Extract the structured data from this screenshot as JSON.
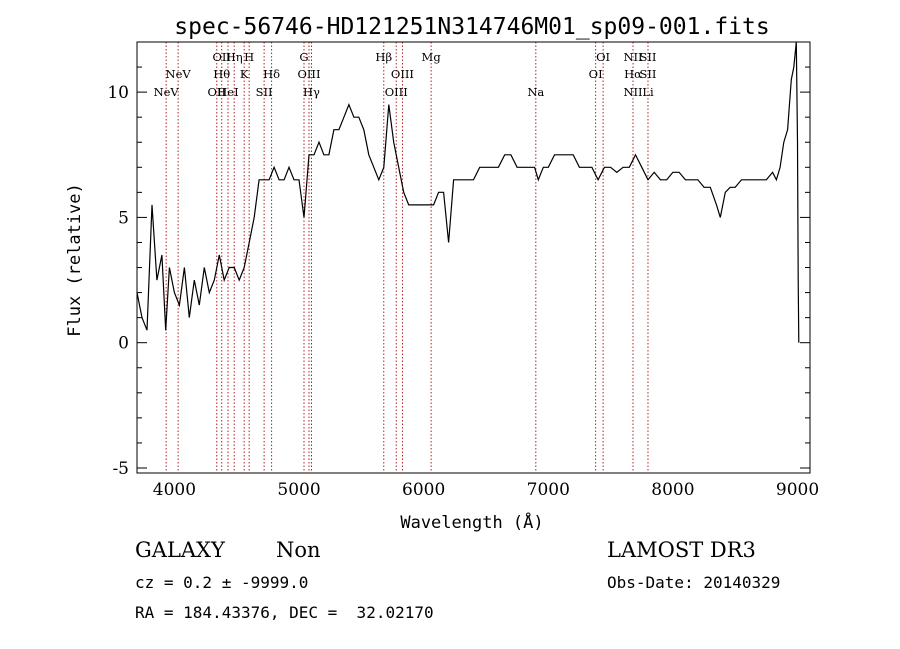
{
  "chart_data": {
    "type": "line",
    "title": "spec-56746-HD121251N314746M01_sp09-001.fits",
    "xlabel": "Wavelength (Å)",
    "ylabel": "Flux (relative)",
    "xlim": [
      3700,
      9100
    ],
    "ylim": [
      -5.2,
      12
    ],
    "x_ticks": [
      4000,
      5000,
      6000,
      7000,
      8000,
      9000
    ],
    "y_ticks": [
      -5,
      0,
      5,
      10
    ],
    "grid": false,
    "series": [
      {
        "x": [
          3700,
          3740,
          3780,
          3820,
          3860,
          3900,
          3930,
          3960,
          4000,
          4040,
          4080,
          4120,
          4160,
          4200,
          4240,
          4280,
          4320,
          4360,
          4400,
          4440,
          4480,
          4520,
          4560,
          4600,
          4640,
          4680,
          4720,
          4760,
          4800,
          4840,
          4880,
          4920,
          4960,
          5000,
          5040,
          5080,
          5120,
          5160,
          5200,
          5240,
          5280,
          5320,
          5360,
          5400,
          5440,
          5480,
          5520,
          5560,
          5600,
          5640,
          5680,
          5720,
          5760,
          5800,
          5840,
          5880,
          5920,
          5960,
          6000,
          6040,
          6080,
          6120,
          6160,
          6200,
          6240,
          6280,
          6320,
          6360,
          6400,
          6450,
          6500,
          6550,
          6600,
          6650,
          6700,
          6750,
          6800,
          6850,
          6890,
          6920,
          6960,
          7000,
          7050,
          7100,
          7150,
          7200,
          7250,
          7300,
          7350,
          7400,
          7450,
          7500,
          7550,
          7600,
          7650,
          7700,
          7750,
          7800,
          7850,
          7900,
          7950,
          8000,
          8050,
          8100,
          8150,
          8200,
          8250,
          8300,
          8350,
          8380,
          8420,
          8460,
          8500,
          8550,
          8600,
          8650,
          8700,
          8750,
          8800,
          8830,
          8860,
          8890,
          8920,
          8950,
          8970,
          8990,
          9000,
          9005,
          9010
        ],
        "y": [
          2.0,
          1.0,
          0.5,
          5.5,
          2.5,
          3.5,
          0.5,
          3.0,
          2.0,
          1.5,
          3.0,
          1.0,
          2.5,
          1.5,
          3.0,
          2.0,
          2.5,
          3.5,
          2.5,
          3.0,
          3.0,
          2.5,
          3.0,
          4.0,
          5.0,
          6.5,
          6.5,
          6.5,
          7.0,
          6.5,
          6.5,
          7.0,
          6.5,
          6.5,
          5.0,
          7.5,
          7.5,
          8.0,
          7.5,
          7.5,
          8.5,
          8.5,
          9.0,
          9.5,
          9.0,
          9.0,
          8.5,
          7.5,
          7.0,
          6.5,
          7.0,
          9.5,
          8.0,
          7.0,
          6.0,
          5.5,
          5.5,
          5.5,
          5.5,
          5.5,
          5.5,
          6.0,
          6.0,
          4.0,
          6.5,
          6.5,
          6.5,
          6.5,
          6.5,
          7.0,
          7.0,
          7.0,
          7.0,
          7.5,
          7.5,
          7.0,
          7.0,
          7.0,
          7.0,
          6.5,
          7.0,
          7.0,
          7.5,
          7.5,
          7.5,
          7.5,
          7.0,
          7.0,
          7.0,
          6.5,
          7.0,
          7.0,
          6.8,
          7.0,
          7.0,
          7.5,
          7.0,
          6.5,
          6.8,
          6.5,
          6.5,
          6.8,
          6.8,
          6.5,
          6.5,
          6.5,
          6.2,
          6.2,
          5.5,
          5.0,
          6.0,
          6.2,
          6.2,
          6.5,
          6.5,
          6.5,
          6.5,
          6.5,
          6.8,
          6.5,
          7.0,
          8.0,
          8.5,
          10.5,
          11.0,
          12.0,
          8.0,
          2.5,
          0.0
        ]
      }
    ],
    "line_markers": [
      {
        "wavelength": 3934,
        "labels": [
          "NeV"
        ],
        "row": 3
      },
      {
        "wavelength": 4030,
        "labels": [
          "NeV"
        ],
        "row": 2
      },
      {
        "wavelength": 4340,
        "labels": [
          "OII"
        ],
        "row": 3
      },
      {
        "wavelength": 4380,
        "labels": [
          "OII",
          "Hθ"
        ],
        "row": 1
      },
      {
        "wavelength": 4430,
        "labels": [
          "HeI"
        ],
        "row": 3
      },
      {
        "wavelength": 4480,
        "labels": [
          "Hη"
        ],
        "row": 1
      },
      {
        "wavelength": 4560,
        "labels": [
          "K"
        ],
        "row": 2
      },
      {
        "wavelength": 4600,
        "labels": [
          "H"
        ],
        "row": 1
      },
      {
        "wavelength": 4720,
        "labels": [
          "SII"
        ],
        "row": 3
      },
      {
        "wavelength": 4780,
        "labels": [
          "Hδ"
        ],
        "row": 2
      },
      {
        "wavelength": 5040,
        "labels": [
          "G"
        ],
        "row": 1
      },
      {
        "wavelength": 5080,
        "labels": [
          "OIII"
        ],
        "row": 2
      },
      {
        "wavelength": 5100,
        "labels": [
          "Hγ"
        ],
        "row": 3
      },
      {
        "wavelength": 5680,
        "labels": [
          "Hβ"
        ],
        "row": 1
      },
      {
        "wavelength": 5780,
        "labels": [
          "OIII"
        ],
        "row": 3
      },
      {
        "wavelength": 5830,
        "labels": [
          "OIII"
        ],
        "row": 2
      },
      {
        "wavelength": 6060,
        "labels": [
          "Mg"
        ],
        "row": 1
      },
      {
        "wavelength": 6900,
        "labels": [
          "Na"
        ],
        "row": 3
      },
      {
        "wavelength": 7380,
        "labels": [
          "OI"
        ],
        "row": 2
      },
      {
        "wavelength": 7440,
        "labels": [
          "OI"
        ],
        "row": 1
      },
      {
        "wavelength": 7680,
        "labels": [
          "NII",
          "Hα",
          "NII"
        ],
        "row": 1
      },
      {
        "wavelength": 7800,
        "labels": [
          "SII",
          "SII",
          "Li"
        ],
        "row": 1
      }
    ]
  },
  "info": {
    "object_class": "GALAXY",
    "subclass": "Non",
    "survey": "LAMOST DR3",
    "cz_text": "cz = 0.2 ± -9999.0",
    "obs_date_text": "Obs-Date: 20140329",
    "radec_text": "RA = 184.43376, DEC =  32.02170"
  },
  "colors": {
    "spectrum": "#000000",
    "marker": "#b22222",
    "text": "#000000"
  }
}
